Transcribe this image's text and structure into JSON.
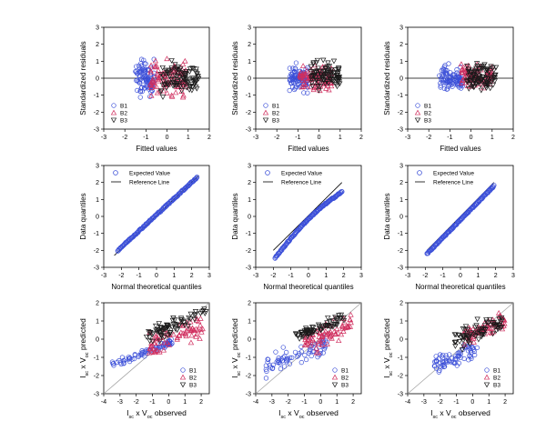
{
  "chart_data": [
    {
      "type": "scatter",
      "panel": "residuals",
      "variant": "set1",
      "xlabel": "Fitted values",
      "ylabel": "Standardized residuals",
      "xlim": [
        -3,
        2
      ],
      "ylim": [
        -3,
        3
      ],
      "xticks": [
        "-3",
        "-2",
        "-1",
        "0",
        "1",
        "2"
      ],
      "yticks": [
        "-3",
        "-2",
        "-1",
        "0",
        "1",
        "2",
        "3"
      ],
      "reference_line": {
        "y": 0
      },
      "legend": [
        "B1",
        "B2",
        "B3"
      ],
      "legend_position": "bottom-left",
      "series": [
        {
          "name": "B1",
          "marker": "circle",
          "x_range": [
            -1.5,
            -0.6
          ],
          "y_center": 0.0,
          "y_spread": 1.0
        },
        {
          "name": "B2",
          "marker": "triangle-up",
          "x_range": [
            -0.8,
            0.9
          ],
          "y_center": 0.0,
          "y_spread": 1.0
        },
        {
          "name": "B3",
          "marker": "triangle-down",
          "x_range": [
            -0.3,
            1.5
          ],
          "y_center": 0.0,
          "y_spread": 1.0
        }
      ]
    },
    {
      "type": "scatter",
      "panel": "residuals",
      "variant": "set2",
      "xlabel": "Fitted values",
      "ylabel": "Standardized residuals",
      "xlim": [
        -3,
        2
      ],
      "ylim": [
        -3,
        3
      ],
      "xticks": [
        "-3",
        "-2",
        "-1",
        "0",
        "1",
        "2"
      ],
      "yticks": [
        "-3",
        "-2",
        "-1",
        "0",
        "1",
        "2",
        "3"
      ],
      "reference_line": {
        "y": 0
      },
      "legend": [
        "B1",
        "B2",
        "B3"
      ],
      "legend_position": "bottom-left",
      "series": [
        {
          "name": "B1",
          "marker": "circle",
          "x_range": [
            -1.4,
            -0.5
          ],
          "y_center": 0.0,
          "y_spread": 0.7
        },
        {
          "name": "B2",
          "marker": "triangle-up",
          "x_range": [
            -0.9,
            0.6
          ],
          "y_center": 0.0,
          "y_spread": 0.7
        },
        {
          "name": "B3",
          "marker": "triangle-down",
          "x_range": [
            -0.4,
            1.0
          ],
          "y_center": 0.1,
          "y_spread": 0.8
        }
      ]
    },
    {
      "type": "scatter",
      "panel": "residuals",
      "variant": "set3",
      "xlabel": "Fitted values",
      "ylabel": "Standardized residuals",
      "xlim": [
        -3,
        2
      ],
      "ylim": [
        -3,
        3
      ],
      "xticks": [
        "-3",
        "-2",
        "-1",
        "0",
        "1",
        "2"
      ],
      "yticks": [
        "-3",
        "-2",
        "-1",
        "0",
        "1",
        "2",
        "3"
      ],
      "reference_line": {
        "y": 0
      },
      "legend": [
        "B1",
        "B2",
        "B3"
      ],
      "legend_position": "bottom-left",
      "series": [
        {
          "name": "B1",
          "marker": "circle",
          "x_range": [
            -1.5,
            -0.4
          ],
          "y_center": 0.0,
          "y_spread": 0.7
        },
        {
          "name": "B2",
          "marker": "triangle-up",
          "x_range": [
            -0.5,
            1.0
          ],
          "y_center": 0.1,
          "y_spread": 0.6
        },
        {
          "name": "B3",
          "marker": "triangle-down",
          "x_range": [
            -0.2,
            1.2
          ],
          "y_center": 0.1,
          "y_spread": 0.7
        }
      ]
    },
    {
      "type": "scatter",
      "panel": "qq",
      "variant": "set1",
      "xlabel": "Normal theoretical quantiles",
      "ylabel": "Data quantiles",
      "xlim": [
        -3,
        3
      ],
      "ylim": [
        -3,
        3
      ],
      "xticks": [
        "-3",
        "-2",
        "-1",
        "0",
        "1",
        "2",
        "3"
      ],
      "yticks": [
        "-3",
        "-2",
        "-1",
        "0",
        "1",
        "2",
        "3"
      ],
      "reference_line": {
        "from": [
          -2.4,
          -2.3
        ],
        "to": [
          2.4,
          2.4
        ]
      },
      "legend": [
        "Expected Value",
        "Reference Line"
      ],
      "legend_position": "top-left",
      "points": {
        "x_range": [
          -2.2,
          2.3
        ],
        "curve": "linear",
        "x_data_range": [
          -2.2,
          2.3
        ],
        "y_data_range": [
          -2.0,
          2.3
        ]
      }
    },
    {
      "type": "scatter",
      "panel": "qq",
      "variant": "set2",
      "xlabel": "Normal theoretical quantiles",
      "ylabel": "Data quantiles",
      "xlim": [
        -3,
        3
      ],
      "ylim": [
        -3,
        3
      ],
      "xticks": [
        "-3",
        "-2",
        "-1",
        "0",
        "1",
        "2",
        "3"
      ],
      "yticks": [
        "-3",
        "-2",
        "-1",
        "0",
        "1",
        "2",
        "3"
      ],
      "reference_line": {
        "from": [
          -2.0,
          -2.0
        ],
        "to": [
          1.9,
          2.0
        ]
      },
      "legend": [
        "Expected Value",
        "Reference Line"
      ],
      "legend_position": "top-left",
      "points": {
        "x_range": [
          -1.9,
          1.9
        ],
        "curve": "concave",
        "x_data_range": [
          -1.9,
          1.9
        ],
        "y_data_range": [
          -2.4,
          1.5
        ]
      }
    },
    {
      "type": "scatter",
      "panel": "qq",
      "variant": "set3",
      "xlabel": "Normal theoretical quantiles",
      "ylabel": "Data quantiles",
      "xlim": [
        -3,
        3
      ],
      "ylim": [
        -3,
        3
      ],
      "xticks": [
        "-3",
        "-2",
        "-1",
        "0",
        "1",
        "2",
        "3"
      ],
      "yticks": [
        "-3",
        "-2",
        "-1",
        "0",
        "1",
        "2",
        "3"
      ],
      "reference_line": {
        "from": [
          -1.9,
          -2.0
        ],
        "to": [
          1.9,
          2.0
        ]
      },
      "legend": [
        "Expected Value",
        "Reference Line"
      ],
      "legend_position": "top-left",
      "points": {
        "x_range": [
          -1.9,
          1.9
        ],
        "curve": "linear",
        "x_data_range": [
          -1.9,
          1.9
        ],
        "y_data_range": [
          -2.2,
          1.8
        ]
      }
    },
    {
      "type": "scatter",
      "panel": "pred",
      "variant": "set1",
      "xlabel": "Isc x Voc observed",
      "ylabel": "Isc x Voc predicted",
      "xlim": [
        -4,
        2.5
      ],
      "ylim": [
        -3,
        2
      ],
      "xticks": [
        "-4",
        "-3",
        "-2",
        "-1",
        "0",
        "1",
        "2"
      ],
      "yticks": [
        "-3",
        "-2",
        "-1",
        "0",
        "1",
        "2"
      ],
      "reference_line": {
        "from": [
          -4,
          -3
        ],
        "to": [
          2.5,
          2
        ]
      },
      "legend": [
        "B1",
        "B2",
        "B3"
      ],
      "legend_position": "bottom-right",
      "series": [
        {
          "name": "B1",
          "marker": "circle",
          "x_range": [
            -3.6,
            0.2
          ],
          "y_center": -0.8,
          "y_spread": 0.25
        },
        {
          "name": "B2",
          "marker": "triangle-up",
          "x_range": [
            -1.2,
            2.2
          ],
          "y_center": 0.2,
          "y_spread": 0.8
        },
        {
          "name": "B3",
          "marker": "triangle-down",
          "x_range": [
            -1.4,
            2.3
          ],
          "y_center": 0.8,
          "y_spread": 0.5
        }
      ]
    },
    {
      "type": "scatter",
      "panel": "pred",
      "variant": "set2",
      "xlabel": "Isc x Voc observed",
      "ylabel": "Isc x Voc predicted",
      "xlim": [
        -4,
        2.5
      ],
      "ylim": [
        -3,
        2
      ],
      "xticks": [
        "-4",
        "-3",
        "-2",
        "-1",
        "0",
        "1",
        "2"
      ],
      "yticks": [
        "-3",
        "-2",
        "-1",
        "0",
        "1",
        "2"
      ],
      "reference_line": {
        "from": [
          -4,
          -3
        ],
        "to": [
          2.5,
          2
        ]
      },
      "legend": [
        "B1",
        "B2",
        "B3"
      ],
      "legend_position": "bottom-right",
      "series": [
        {
          "name": "B1",
          "marker": "circle",
          "x_range": [
            -3.4,
            0.4
          ],
          "y_center": -0.9,
          "y_spread": 0.6
        },
        {
          "name": "B2",
          "marker": "triangle-up",
          "x_range": [
            -1.0,
            1.9
          ],
          "y_center": 0.3,
          "y_spread": 0.8
        },
        {
          "name": "B3",
          "marker": "triangle-down",
          "x_range": [
            -1.6,
            1.5
          ],
          "y_center": 0.7,
          "y_spread": 0.3
        }
      ]
    },
    {
      "type": "scatter",
      "panel": "pred",
      "variant": "set3",
      "xlabel": "Isc x Voc observed",
      "ylabel": "Isc x Voc predicted",
      "xlim": [
        -4,
        2.5
      ],
      "ylim": [
        -3,
        2
      ],
      "xticks": [
        "-4",
        "-3",
        "-2",
        "-1",
        "0",
        "1",
        "2"
      ],
      "yticks": [
        "-3",
        "-2",
        "-1",
        "0",
        "1",
        "2"
      ],
      "reference_line": {
        "from": [
          -4,
          -3
        ],
        "to": [
          2.5,
          2
        ]
      },
      "legend": [
        "B1",
        "B2",
        "B3"
      ],
      "legend_position": "bottom-right",
      "series": [
        {
          "name": "B1",
          "marker": "circle",
          "x_range": [
            -2.4,
            0.3
          ],
          "y_center": -1.0,
          "y_spread": 0.6
        },
        {
          "name": "B2",
          "marker": "triangle-up",
          "x_range": [
            -0.6,
            2.0
          ],
          "y_center": 0.5,
          "y_spread": 0.6
        },
        {
          "name": "B3",
          "marker": "triangle-down",
          "x_range": [
            -1.2,
            1.8
          ],
          "y_center": 0.4,
          "y_spread": 0.6
        }
      ]
    }
  ],
  "colors": {
    "B1": "#3b4fd8",
    "B2": "#d02e5e",
    "B3": "#1a1a1a",
    "expected": "#3b4fd8",
    "reference": "#000000",
    "prediction_line": "#a6a6a6"
  }
}
